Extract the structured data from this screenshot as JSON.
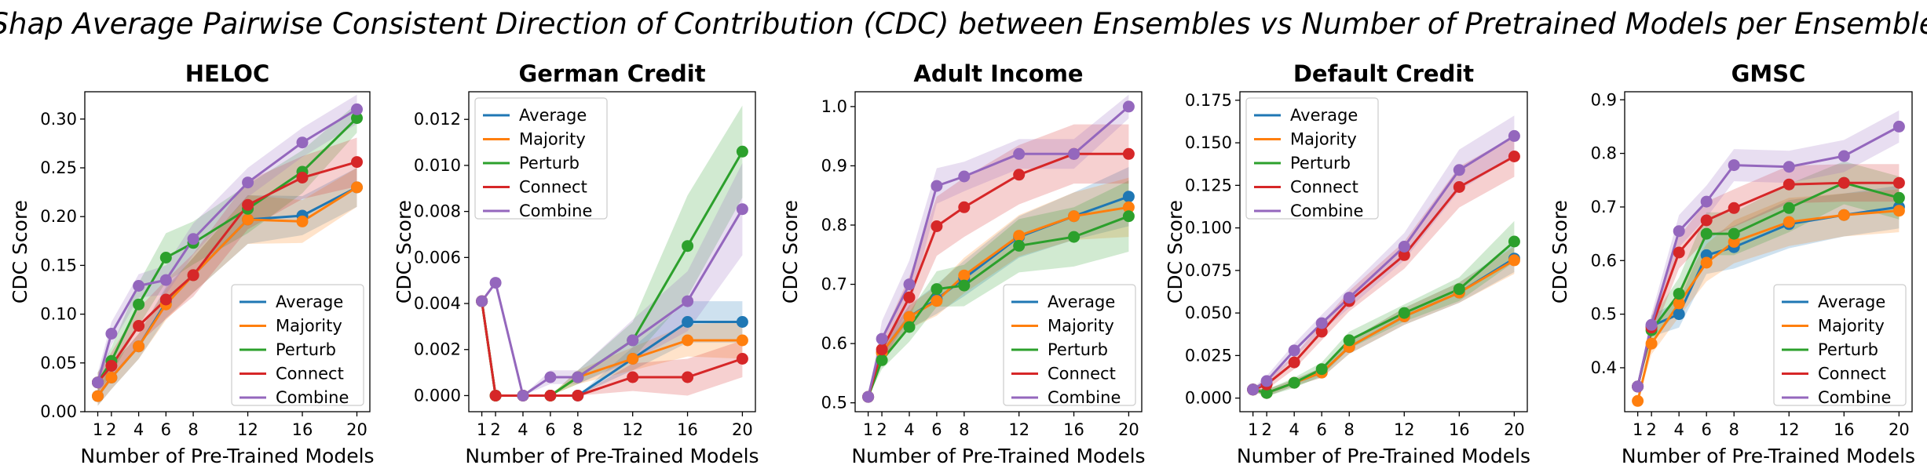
{
  "figure_title": "Shap Average Pairwise Consistent Direction of Contribution (CDC) between Ensembles vs Number of Pretrained Models per Ensemble",
  "colors": {
    "Average": "#1f77b4",
    "Majority": "#ff7f0e",
    "Perturb": "#2ca02c",
    "Connect": "#d62728",
    "Combine": "#9467bd"
  },
  "chart_data": [
    {
      "type": "line",
      "title": "HELOC",
      "xlabel": "Number of Pre-Trained Models",
      "ylabel": "CDC Score",
      "x_ticks": [
        1,
        2,
        4,
        6,
        8,
        12,
        16,
        20
      ],
      "y_ticks": [
        "0.00",
        "0.05",
        "0.10",
        "0.15",
        "0.20",
        "0.25",
        "0.30"
      ],
      "xlim": [
        0.05,
        20.95
      ],
      "ylim": [
        0.0,
        0.328
      ],
      "legend": "lower-right",
      "series": [
        {
          "name": "Average",
          "x": [
            1,
            2,
            4,
            6,
            8,
            12,
            16,
            20
          ],
          "y": [
            0.016,
            0.035,
            0.067,
            0.112,
            0.14,
            0.197,
            0.201,
            0.23
          ],
          "band": [
            0.01,
            0.012,
            0.013,
            0.016,
            0.018,
            0.025,
            0.02,
            0.02
          ]
        },
        {
          "name": "Majority",
          "x": [
            1,
            2,
            4,
            6,
            8,
            12,
            16,
            20
          ],
          "y": [
            0.016,
            0.035,
            0.067,
            0.11,
            0.14,
            0.197,
            0.195,
            0.23
          ],
          "band": [
            0.01,
            0.012,
            0.013,
            0.016,
            0.018,
            0.025,
            0.022,
            0.02
          ]
        },
        {
          "name": "Perturb",
          "x": [
            1,
            2,
            4,
            6,
            8,
            12,
            16,
            20
          ],
          "y": [
            0.03,
            0.052,
            0.11,
            0.158,
            0.173,
            0.208,
            0.246,
            0.301
          ],
          "band": [
            0.01,
            0.014,
            0.022,
            0.025,
            0.022,
            0.025,
            0.022,
            0.015
          ]
        },
        {
          "name": "Connect",
          "x": [
            1,
            2,
            4,
            6,
            8,
            12,
            16,
            20
          ],
          "y": [
            0.03,
            0.047,
            0.088,
            0.115,
            0.14,
            0.212,
            0.24,
            0.256
          ],
          "band": [
            0.01,
            0.014,
            0.018,
            0.02,
            0.022,
            0.025,
            0.022,
            0.025
          ]
        },
        {
          "name": "Combine",
          "x": [
            1,
            2,
            4,
            6,
            8,
            12,
            16,
            20
          ],
          "y": [
            0.03,
            0.08,
            0.129,
            0.135,
            0.177,
            0.235,
            0.276,
            0.31
          ],
          "band": [
            0.01,
            0.012,
            0.012,
            0.015,
            0.016,
            0.015,
            0.015,
            0.015
          ]
        }
      ]
    },
    {
      "type": "line",
      "title": "German Credit",
      "xlabel": "Number of Pre-Trained Models",
      "ylabel": "CDC Score",
      "x_ticks": [
        1,
        2,
        4,
        6,
        8,
        12,
        16,
        20
      ],
      "y_ticks": [
        "0.000",
        "0.002",
        "0.004",
        "0.006",
        "0.008",
        "0.010",
        "0.012"
      ],
      "xlim": [
        0.05,
        20.95
      ],
      "ylim": [
        -0.0007,
        0.0132
      ],
      "legend": "upper-left",
      "series": [
        {
          "name": "Average",
          "x": [
            1,
            2,
            4,
            6,
            8,
            12,
            16,
            20
          ],
          "y": [
            0.0041,
            0.0,
            0.0,
            0.0,
            0.0,
            0.0016,
            0.0032,
            0.0032
          ],
          "band": [
            0,
            0,
            0,
            0,
            0,
            0.0005,
            0.0009,
            0.0009
          ]
        },
        {
          "name": "Majority",
          "x": [
            1,
            2,
            4,
            6,
            8,
            12,
            16,
            20
          ],
          "y": [
            0.0041,
            0.0,
            0.0,
            0.0,
            0.0008,
            0.0016,
            0.0024,
            0.0024
          ],
          "band": [
            0,
            0,
            0,
            0,
            0.0003,
            0.0005,
            0.0007,
            0.0008
          ]
        },
        {
          "name": "Perturb",
          "x": [
            1,
            2,
            4,
            6,
            8,
            12,
            16,
            20
          ],
          "y": [
            0.0041,
            0.0,
            0.0,
            0.0,
            0.0008,
            0.0024,
            0.0065,
            0.0106
          ],
          "band": [
            0,
            0,
            0,
            0,
            0.0003,
            0.0008,
            0.0022,
            0.002
          ]
        },
        {
          "name": "Connect",
          "x": [
            1,
            2,
            4,
            6,
            8,
            12,
            16,
            20
          ],
          "y": [
            0.0041,
            0.0,
            0.0,
            0.0,
            0.0,
            0.0008,
            0.0008,
            0.0016
          ],
          "band": [
            0,
            0,
            0,
            0,
            0,
            0.0006,
            0.0008,
            0.0008
          ]
        },
        {
          "name": "Combine",
          "x": [
            1,
            2,
            4,
            6,
            8,
            12,
            16,
            20
          ],
          "y": [
            0.0041,
            0.0049,
            0.0,
            0.0008,
            0.0008,
            0.0024,
            0.0041,
            0.0081
          ],
          "band": [
            0,
            0,
            0,
            0.0003,
            0.0003,
            0.0009,
            0.0013,
            0.002
          ]
        }
      ]
    },
    {
      "type": "line",
      "title": "Adult Income",
      "xlabel": "Number of Pre-Trained Models",
      "ylabel": "CDC Score",
      "x_ticks": [
        1,
        2,
        4,
        6,
        8,
        12,
        16,
        20
      ],
      "y_ticks": [
        "0.5",
        "0.6",
        "0.7",
        "0.8",
        "0.9",
        "1.0"
      ],
      "xlim": [
        0.05,
        20.95
      ],
      "ylim": [
        0.485,
        1.025
      ],
      "legend": "lower-right",
      "series": [
        {
          "name": "Average",
          "x": [
            1,
            2,
            4,
            6,
            8,
            12,
            16,
            20
          ],
          "y": [
            0.51,
            0.585,
            0.645,
            0.675,
            0.71,
            0.78,
            0.815,
            0.848
          ],
          "band": [
            0,
            0.012,
            0.02,
            0.025,
            0.03,
            0.035,
            0.04,
            0.05
          ]
        },
        {
          "name": "Majority",
          "x": [
            1,
            2,
            4,
            6,
            8,
            12,
            16,
            20
          ],
          "y": [
            0.51,
            0.585,
            0.645,
            0.672,
            0.715,
            0.782,
            0.815,
            0.83
          ],
          "band": [
            0,
            0.012,
            0.02,
            0.025,
            0.03,
            0.035,
            0.04,
            0.05
          ]
        },
        {
          "name": "Perturb",
          "x": [
            1,
            2,
            4,
            6,
            8,
            12,
            16,
            20
          ],
          "y": [
            0.51,
            0.572,
            0.628,
            0.692,
            0.698,
            0.765,
            0.78,
            0.815
          ],
          "band": [
            0,
            0.015,
            0.025,
            0.03,
            0.035,
            0.045,
            0.05,
            0.06
          ]
        },
        {
          "name": "Connect",
          "x": [
            1,
            2,
            4,
            6,
            8,
            12,
            16,
            20
          ],
          "y": [
            0.51,
            0.59,
            0.678,
            0.798,
            0.83,
            0.885,
            0.92,
            0.92
          ],
          "band": [
            0,
            0.02,
            0.035,
            0.05,
            0.05,
            0.05,
            0.05,
            0.05
          ]
        },
        {
          "name": "Combine",
          "x": [
            1,
            2,
            4,
            6,
            8,
            12,
            16,
            20
          ],
          "y": [
            0.51,
            0.608,
            0.7,
            0.866,
            0.882,
            0.92,
            0.92,
            1.0
          ],
          "band": [
            0,
            0.03,
            0.04,
            0.03,
            0.025,
            0.025,
            0.025,
            0.02
          ]
        }
      ]
    },
    {
      "type": "line",
      "title": "Default Credit",
      "xlabel": "Number of Pre-Trained Models",
      "ylabel": "CDC Score",
      "x_ticks": [
        1,
        2,
        4,
        6,
        8,
        12,
        16,
        20
      ],
      "y_ticks": [
        "0.000",
        "0.025",
        "0.050",
        "0.075",
        "0.100",
        "0.125",
        "0.150",
        "0.175"
      ],
      "xlim": [
        0.05,
        20.95
      ],
      "ylim": [
        -0.008,
        0.18
      ],
      "legend": "upper-left",
      "series": [
        {
          "name": "Average",
          "x": [
            1,
            2,
            4,
            6,
            8,
            12,
            16,
            20
          ],
          "y": [
            0.005,
            0.003,
            0.009,
            0.015,
            0.03,
            0.048,
            0.062,
            0.082
          ],
          "band": [
            0.001,
            0.002,
            0.002,
            0.003,
            0.004,
            0.005,
            0.006,
            0.008
          ]
        },
        {
          "name": "Majority",
          "x": [
            1,
            2,
            4,
            6,
            8,
            12,
            16,
            20
          ],
          "y": [
            0.005,
            0.003,
            0.009,
            0.015,
            0.03,
            0.048,
            0.062,
            0.081
          ],
          "band": [
            0.001,
            0.002,
            0.002,
            0.003,
            0.004,
            0.005,
            0.006,
            0.008
          ]
        },
        {
          "name": "Perturb",
          "x": [
            1,
            2,
            4,
            6,
            8,
            12,
            16,
            20
          ],
          "y": [
            0.005,
            0.003,
            0.009,
            0.017,
            0.034,
            0.05,
            0.064,
            0.092
          ],
          "band": [
            0.001,
            0.002,
            0.003,
            0.004,
            0.005,
            0.005,
            0.007,
            0.012
          ]
        },
        {
          "name": "Connect",
          "x": [
            1,
            2,
            4,
            6,
            8,
            12,
            16,
            20
          ],
          "y": [
            0.005,
            0.008,
            0.021,
            0.039,
            0.057,
            0.084,
            0.124,
            0.142
          ],
          "band": [
            0.001,
            0.003,
            0.004,
            0.005,
            0.006,
            0.008,
            0.012,
            0.012
          ]
        },
        {
          "name": "Combine",
          "x": [
            1,
            2,
            4,
            6,
            8,
            12,
            16,
            20
          ],
          "y": [
            0.005,
            0.01,
            0.028,
            0.044,
            0.059,
            0.089,
            0.134,
            0.154
          ],
          "band": [
            0.001,
            0.003,
            0.004,
            0.005,
            0.006,
            0.008,
            0.012,
            0.012
          ]
        }
      ]
    },
    {
      "type": "line",
      "title": "GMSC",
      "xlabel": "Number of Pre-Trained Models",
      "ylabel": "CDC Score",
      "x_ticks": [
        1,
        2,
        4,
        6,
        8,
        12,
        16,
        20
      ],
      "y_ticks": [
        "0.4",
        "0.5",
        "0.6",
        "0.7",
        "0.8",
        "0.9"
      ],
      "xlim": [
        0.05,
        20.95
      ],
      "ylim": [
        0.318,
        0.915
      ],
      "legend": "lower-right",
      "series": [
        {
          "name": "Average",
          "x": [
            1,
            2,
            4,
            6,
            8,
            12,
            16,
            20
          ],
          "y": [
            0.365,
            0.478,
            0.5,
            0.61,
            0.625,
            0.668,
            0.685,
            0.7
          ],
          "band": [
            0,
            0.02,
            0.025,
            0.035,
            0.04,
            0.045,
            0.04,
            0.04
          ]
        },
        {
          "name": "Majority",
          "x": [
            1,
            2,
            4,
            6,
            8,
            12,
            16,
            20
          ],
          "y": [
            0.338,
            0.445,
            0.52,
            0.596,
            0.635,
            0.672,
            0.685,
            0.693
          ],
          "band": [
            0,
            0.02,
            0.025,
            0.035,
            0.04,
            0.045,
            0.04,
            0.04
          ]
        },
        {
          "name": "Perturb",
          "x": [
            1,
            2,
            4,
            6,
            8,
            12,
            16,
            20
          ],
          "y": [
            0.365,
            0.47,
            0.538,
            0.65,
            0.65,
            0.698,
            0.745,
            0.717
          ],
          "band": [
            0,
            0.02,
            0.03,
            0.04,
            0.04,
            0.045,
            0.04,
            0.04
          ]
        },
        {
          "name": "Connect",
          "x": [
            1,
            2,
            4,
            6,
            8,
            12,
            16,
            20
          ],
          "y": [
            0.365,
            0.475,
            0.615,
            0.675,
            0.698,
            0.742,
            0.745,
            0.745
          ],
          "band": [
            0,
            0.02,
            0.03,
            0.035,
            0.035,
            0.035,
            0.035,
            0.035
          ]
        },
        {
          "name": "Combine",
          "x": [
            1,
            2,
            4,
            6,
            8,
            12,
            16,
            20
          ],
          "y": [
            0.365,
            0.48,
            0.655,
            0.71,
            0.778,
            0.775,
            0.795,
            0.85
          ],
          "band": [
            0,
            0.02,
            0.03,
            0.03,
            0.03,
            0.03,
            0.03,
            0.03
          ]
        }
      ]
    }
  ]
}
